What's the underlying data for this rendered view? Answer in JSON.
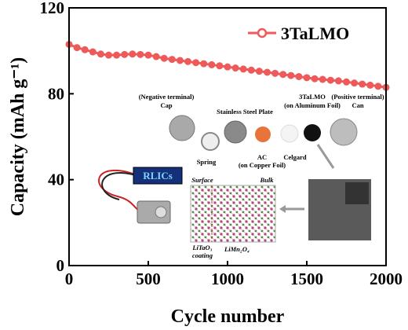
{
  "chart_data": {
    "type": "line",
    "x_label": "Cycle number",
    "y_label": "Capacity (mAh g⁻¹)",
    "x": [
      0,
      50,
      100,
      150,
      200,
      250,
      300,
      350,
      400,
      450,
      500,
      550,
      600,
      650,
      700,
      750,
      800,
      850,
      900,
      950,
      1000,
      1050,
      1100,
      1150,
      1200,
      1250,
      1300,
      1350,
      1400,
      1450,
      1500,
      1550,
      1600,
      1650,
      1700,
      1750,
      1800,
      1850,
      1900,
      1950,
      2000
    ],
    "series": [
      {
        "name": "3TaLMO",
        "color": "#ee5a5a",
        "values": [
          103,
          101.5,
          100.5,
          99.5,
          98.5,
          98,
          98,
          98.3,
          98.5,
          98.3,
          98,
          97.3,
          96.5,
          96,
          95.5,
          95,
          94.5,
          94,
          93.5,
          93,
          92.5,
          92,
          91.5,
          91,
          90.5,
          90,
          89.5,
          89,
          88.5,
          88,
          87.5,
          87,
          86.7,
          86.3,
          86,
          85.5,
          85,
          84.5,
          84,
          83.5,
          83
        ]
      }
    ],
    "xlim": [
      0,
      2000
    ],
    "xticks": [
      0,
      500,
      1000,
      1500,
      2000
    ],
    "ylim": [
      0,
      120
    ],
    "yticks": [
      0,
      40,
      80,
      120
    ],
    "legend": "upper right",
    "annotations": [
      "(Negative terminal)",
      "Cap",
      "Spring",
      "Stainless Steel Plate",
      "AC",
      "(on Copper Foil)",
      "Celgard",
      "3TaLMO",
      "(on Aluminum Foil)",
      "(Positive terminal)",
      "Can",
      "RLICs",
      "Surface",
      "Bulk",
      "LiTaO₃",
      "coating",
      "LiMn₂O₄"
    ]
  }
}
